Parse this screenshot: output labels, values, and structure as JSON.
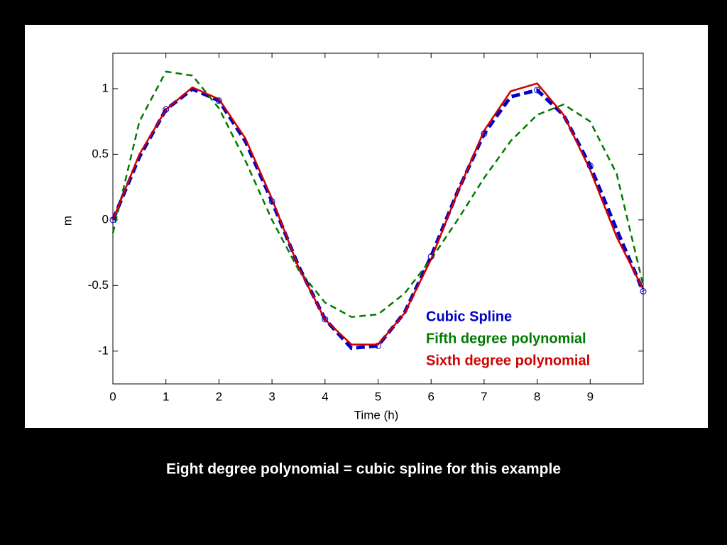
{
  "chart_data": {
    "type": "line",
    "xlabel": "Time (h)",
    "ylabel": "m",
    "x": [
      0,
      0.5,
      1,
      1.5,
      2,
      2.5,
      3,
      3.5,
      4,
      4.5,
      5,
      5.5,
      6,
      6.5,
      7,
      7.5,
      8,
      8.5,
      9,
      9.5,
      10
    ],
    "series": [
      {
        "name": "Cubic Spline",
        "color": "#0000c8",
        "style": "dashed-thick",
        "values": [
          0,
          0.479,
          0.841,
          0.997,
          0.909,
          0.598,
          0.141,
          -0.351,
          -0.757,
          -0.978,
          -0.959,
          -0.706,
          -0.279,
          0.215,
          0.657,
          0.938,
          0.989,
          0.798,
          0.412,
          -0.075,
          -0.544
        ]
      },
      {
        "name": "Fifth degree polynomial",
        "color": "#007a00",
        "style": "dashed",
        "values": [
          -0.1,
          0.75,
          1.13,
          1.1,
          0.85,
          0.45,
          0.0,
          -0.38,
          -0.63,
          -0.74,
          -0.72,
          -0.56,
          -0.3,
          0.0,
          0.32,
          0.6,
          0.8,
          0.88,
          0.75,
          0.35,
          -0.5
        ]
      },
      {
        "name": "Sixth degree polynomial",
        "color": "#d00000",
        "style": "solid",
        "values": [
          0,
          0.5,
          0.84,
          1.01,
          0.92,
          0.62,
          0.16,
          -0.36,
          -0.76,
          -0.95,
          -0.95,
          -0.71,
          -0.3,
          0.21,
          0.68,
          0.98,
          1.04,
          0.8,
          0.38,
          -0.13,
          -0.53
        ]
      }
    ],
    "points": {
      "x": [
        0,
        1,
        2,
        3,
        4,
        5,
        6,
        7,
        8,
        9,
        10
      ],
      "values": [
        0,
        0.841,
        0.909,
        0.141,
        -0.757,
        -0.959,
        -0.279,
        0.657,
        0.989,
        0.412,
        -0.544
      ]
    },
    "xlim": [
      0,
      10
    ],
    "xticks": [
      0,
      1,
      2,
      3,
      4,
      5,
      6,
      7,
      8,
      9
    ],
    "ylim": [
      -1.25,
      1.27
    ],
    "yticks": [
      -1,
      -0.5,
      0,
      0.5,
      1
    ]
  },
  "caption": "Eight degree polynomial = cubic spline for this example"
}
